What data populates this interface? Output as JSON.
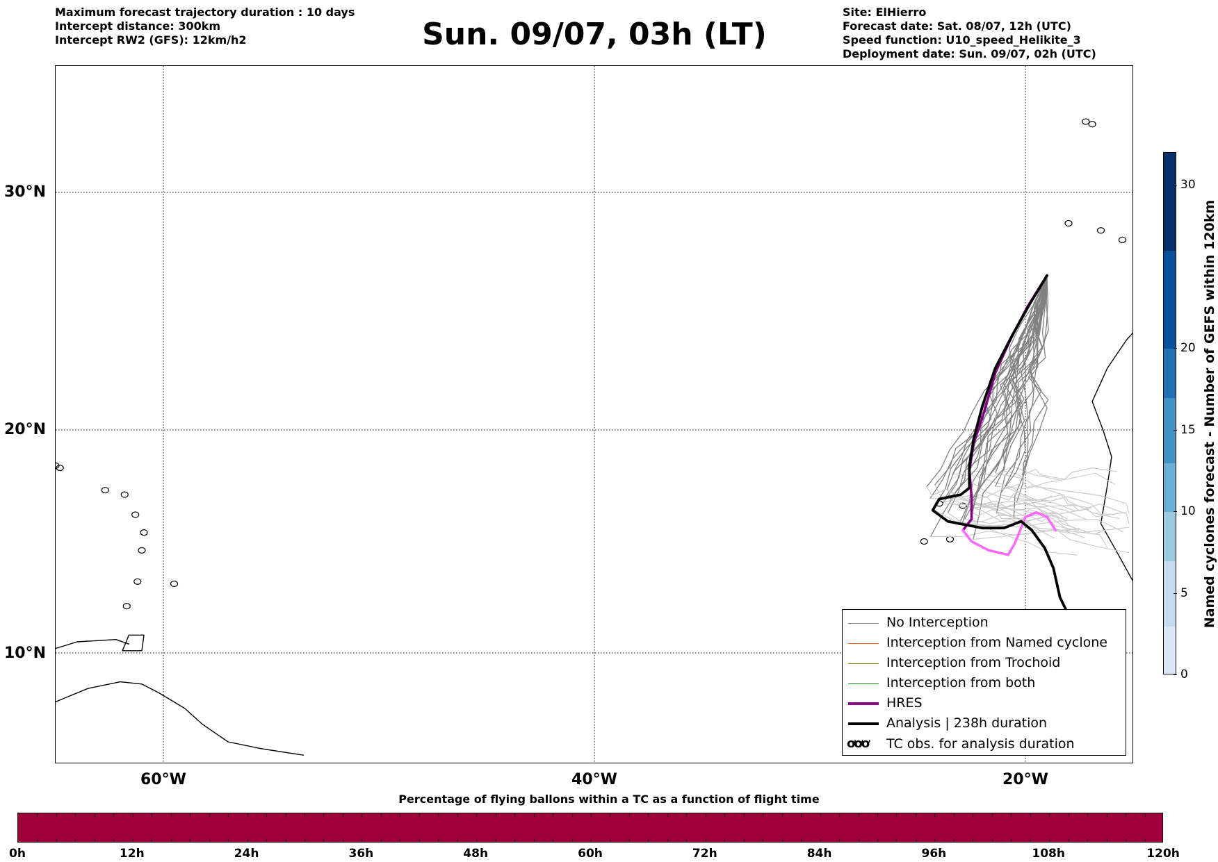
{
  "header": {
    "left_lines": [
      "Maximum forecast trajectory duration : 10 days",
      "Intercept distance: 300km",
      "Intercept RW2 (GFS):  12km/h2"
    ],
    "title": "Sun. 09/07, 03h (LT)",
    "right_lines": [
      "Site: ElHierro",
      "Forecast date: Sat. 08/07, 12h (UTC)",
      "Speed function: U10_speed_Helikite_3",
      "Deployment date: Sun. 09/07, 02h (UTC)"
    ]
  },
  "map": {
    "lon_range": [
      -65,
      15
    ],
    "lat_range": [
      5,
      35
    ],
    "lat_labels": [
      "30°N",
      "20°N",
      "10°N"
    ],
    "lat_values": [
      30,
      20,
      10
    ],
    "lon_labels": [
      "60°W",
      "40°W",
      "20°W"
    ],
    "lon_values": [
      -60,
      -40,
      -20
    ],
    "colors": {
      "no_interception": "#808080",
      "late_trajectories": "#cccccc",
      "named_cyclone": "#ff5a1f",
      "trochoid": "#808000",
      "both": "#008000",
      "hres": "#8b008b",
      "hres_late": "#ff66ff",
      "analysis": "#000000"
    },
    "analysis_track": [
      [
        -19.0,
        26.5
      ],
      [
        -19.8,
        25.3
      ],
      [
        -20.6,
        24.0
      ],
      [
        -21.4,
        22.6
      ],
      [
        -22.0,
        21.0
      ],
      [
        -22.4,
        19.6
      ],
      [
        -22.6,
        18.4
      ],
      [
        -22.6,
        17.4
      ],
      [
        -23.0,
        17.1
      ],
      [
        -24.0,
        16.9
      ],
      [
        -24.3,
        16.4
      ],
      [
        -23.6,
        15.9
      ],
      [
        -22.0,
        15.6
      ],
      [
        -21.0,
        15.6
      ],
      [
        -20.2,
        15.9
      ],
      [
        -19.7,
        15.5
      ],
      [
        -19.1,
        14.7
      ],
      [
        -18.7,
        13.8
      ],
      [
        -18.4,
        12.5
      ],
      [
        -18.0,
        11.7
      ]
    ],
    "hres_track": [
      [
        -19.0,
        26.5
      ],
      [
        -19.9,
        25.2
      ],
      [
        -20.7,
        23.8
      ],
      [
        -21.4,
        22.4
      ],
      [
        -21.9,
        20.8
      ],
      [
        -22.4,
        19.4
      ],
      [
        -22.6,
        18.2
      ],
      [
        -22.5,
        17.0
      ],
      [
        -22.5,
        16.0
      ],
      [
        -22.9,
        15.5
      ]
    ],
    "hres_late_track": [
      [
        -22.9,
        15.5
      ],
      [
        -22.5,
        15.0
      ],
      [
        -21.7,
        14.6
      ],
      [
        -20.8,
        14.4
      ],
      [
        -20.5,
        14.9
      ],
      [
        -20.2,
        15.6
      ],
      [
        -20.0,
        16.1
      ],
      [
        -19.5,
        16.3
      ],
      [
        -19.0,
        16.1
      ],
      [
        -18.6,
        15.5
      ]
    ]
  },
  "legend": {
    "items": [
      {
        "label": "No Interception",
        "key": "no_interception"
      },
      {
        "label": "Interception from Named cyclone",
        "key": "named_cyclone"
      },
      {
        "label": "Interception from Trochoid",
        "key": "trochoid"
      },
      {
        "label": "Interception from both",
        "key": "both"
      },
      {
        "label": "HRES",
        "key": "hres"
      },
      {
        "label": "Analysis | 238h duration",
        "key": "analysis"
      }
    ],
    "tc_symbol": "ơơơ",
    "tc_label": "TC obs. for analysis duration"
  },
  "colorbar": {
    "title": "Named cyclones forecast - Number of GEFS within 120km",
    "ticks": [
      "0",
      "5",
      "10",
      "15",
      "20",
      "30"
    ],
    "tick_values": [
      0,
      5,
      10,
      15,
      20,
      30
    ],
    "max": 32,
    "colors": [
      "#dbe9f6",
      "#c6dbef",
      "#9ecae1",
      "#6baed6",
      "#4292c6",
      "#2171b5",
      "#08519c",
      "#08306b"
    ]
  },
  "flight_bar": {
    "title": "Percentage of flying ballons within a TC as a function of flight time",
    "ticks": [
      "0h",
      "12h",
      "24h",
      "36h",
      "48h",
      "60h",
      "72h",
      "84h",
      "96h",
      "108h",
      "120h"
    ],
    "fill_color": "#9e003a",
    "fill_fraction": 1.0
  }
}
